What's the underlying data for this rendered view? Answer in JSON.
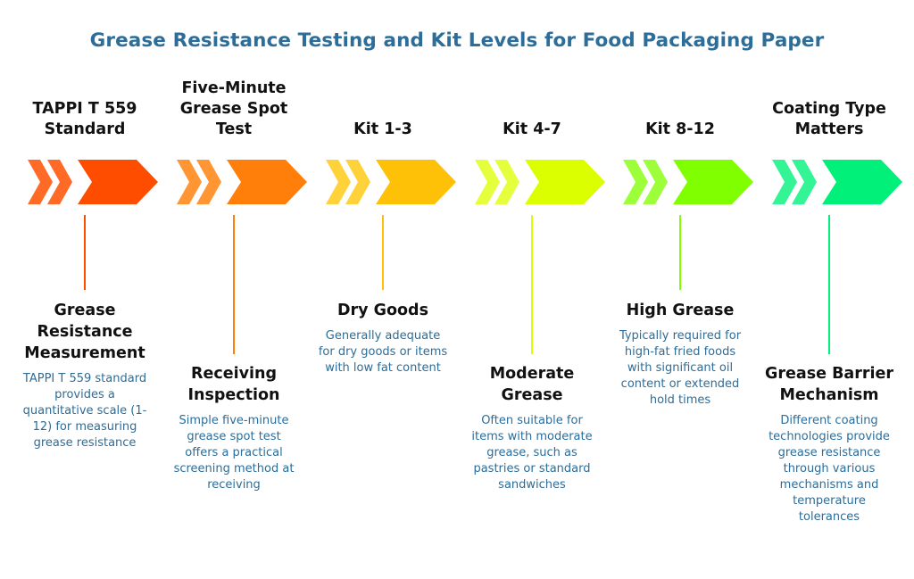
{
  "title": "Grease Resistance Testing and Kit Levels for Food Packaging Paper",
  "stages": [
    {
      "heading": "TAPPI T 559 Standard",
      "color": "#ff4d00",
      "color_light": "#ff6a26",
      "caption": "Grease Resistance Measurement",
      "description": "TAPPI T 559 standard provides a quantitative scale (1-12) for measuring grease resistance"
    },
    {
      "heading": "Five-Minute Grease Spot Test",
      "color": "#ff7f0a",
      "color_light": "#ff9533",
      "caption": "Receiving Inspection",
      "description": "Simple five-minute grease spot test offers a practical screening method at receiving"
    },
    {
      "heading": "Kit 1-3",
      "color": "#ffc107",
      "color_light": "#ffd23a",
      "caption": "Dry Goods",
      "description": "Generally adequate for dry goods or items with low fat content"
    },
    {
      "heading": "Kit 4-7",
      "color": "#dcff00",
      "color_light": "#e6ff3d",
      "caption": "Moderate Grease",
      "description": "Often suitable for items with moderate grease, such as pastries or standard sandwiches"
    },
    {
      "heading": "Kit 8-12",
      "color": "#7fff00",
      "color_light": "#9cff3a",
      "caption": "High Grease",
      "description": "Typically required for high-fat fried foods with significant oil content or extended hold times"
    },
    {
      "heading": "Coating Type Matters",
      "color": "#00f07a",
      "color_light": "#33f595",
      "caption": "Grease Barrier Mechanism",
      "description": "Different coating technologies provide grease resistance through various mechanisms and temperature tolerances"
    }
  ]
}
